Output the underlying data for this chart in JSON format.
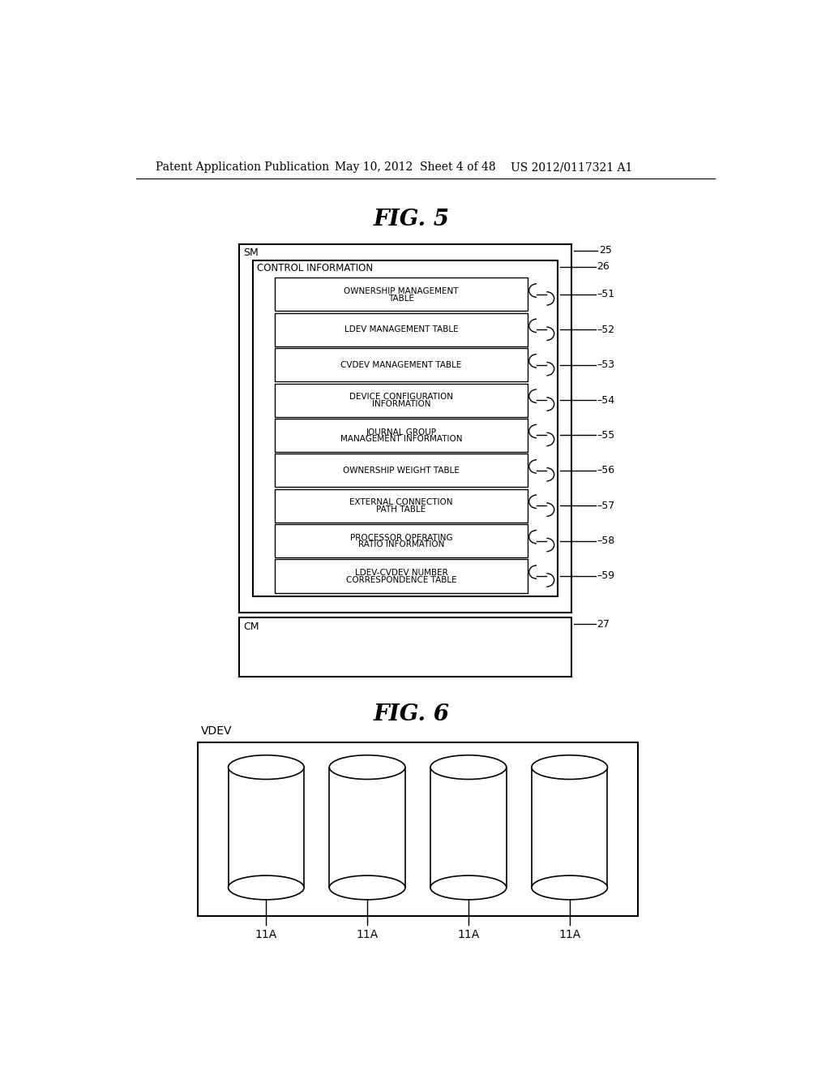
{
  "bg_color": "#ffffff",
  "header_text": "Patent Application Publication",
  "header_date": "May 10, 2012  Sheet 4 of 48",
  "header_patent": "US 2012/0117321 A1",
  "fig5_title": "FIG. 5",
  "fig6_title": "FIG. 6",
  "sm_label": "SM",
  "cm_label": "CM",
  "boxes": [
    {
      "text": "OWNERSHIP MANAGEMENT\nTABLE",
      "label": "51"
    },
    {
      "text": "LDEV MANAGEMENT TABLE",
      "label": "52"
    },
    {
      "text": "CVDEV MANAGEMENT TABLE",
      "label": "53"
    },
    {
      "text": "DEVICE CONFIGURATION\nINFORMATION",
      "label": "54"
    },
    {
      "text": "JOURNAL GROUP\nMANAGEMENT INFORMATION",
      "label": "55"
    },
    {
      "text": "OWNERSHIP WEIGHT TABLE",
      "label": "56"
    },
    {
      "text": "EXTERNAL CONNECTION\nPATH TABLE",
      "label": "57"
    },
    {
      "text": "PROCESSOR OPERATING\nRATIO INFORMATION",
      "label": "58"
    },
    {
      "text": "LDEV-CVDEV NUMBER\nCORRESPONDENCE TABLE",
      "label": "59"
    }
  ],
  "vdev_label": "VDEV",
  "disk_label": "11A",
  "n_disks": 4
}
